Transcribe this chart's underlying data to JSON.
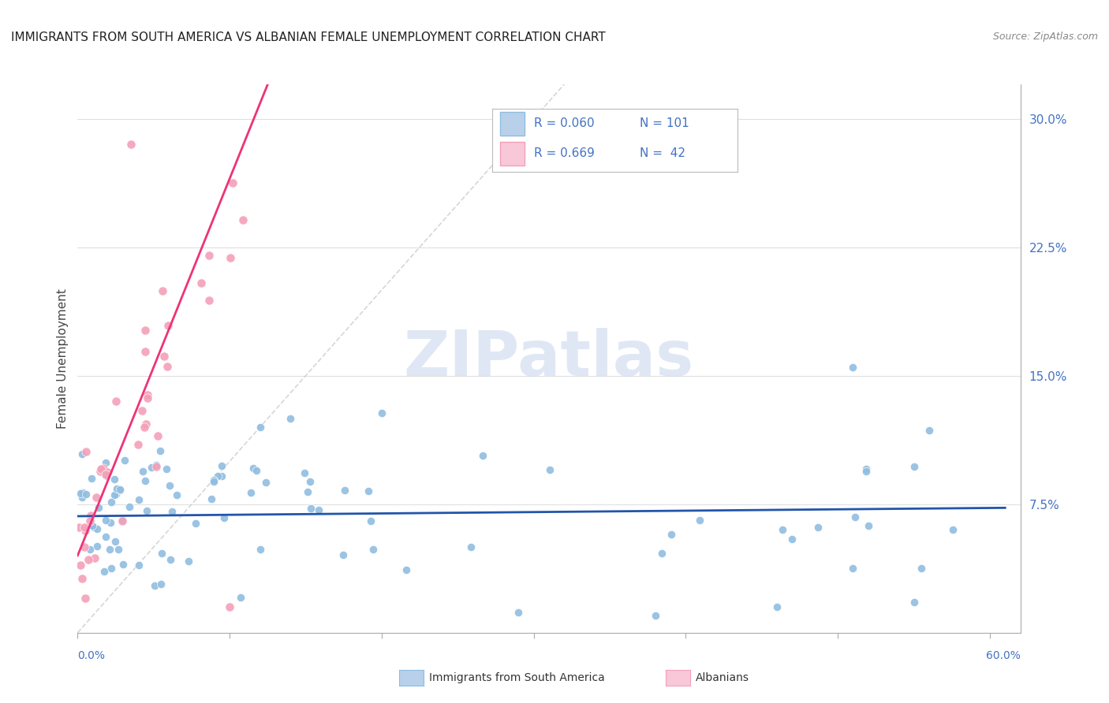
{
  "title": "IMMIGRANTS FROM SOUTH AMERICA VS ALBANIAN FEMALE UNEMPLOYMENT CORRELATION CHART",
  "source": "Source: ZipAtlas.com",
  "ylabel": "Female Unemployment",
  "ylim": [
    0.0,
    0.32
  ],
  "xlim": [
    0.0,
    0.62
  ],
  "ytick_vals": [
    0.075,
    0.15,
    0.225,
    0.3
  ],
  "ytick_labels": [
    "7.5%",
    "15.0%",
    "22.5%",
    "30.0%"
  ],
  "blue_color": "#90bde0",
  "blue_edge": "#ffffff",
  "blue_line_color": "#2255aa",
  "pink_color": "#f4a0b8",
  "pink_edge": "#ffffff",
  "pink_line_color": "#ee3377",
  "diag_color": "#cccccc",
  "grid_color": "#e0e0e0",
  "watermark_color": "#ccd8ee",
  "background": "#ffffff",
  "legend_r1": "R = 0.060",
  "legend_n1": "N = 101",
  "legend_r2": "R = 0.669",
  "legend_n2": "N =  42",
  "text_color_blue": "#4472c4",
  "title_color": "#222222",
  "source_color": "#888888"
}
